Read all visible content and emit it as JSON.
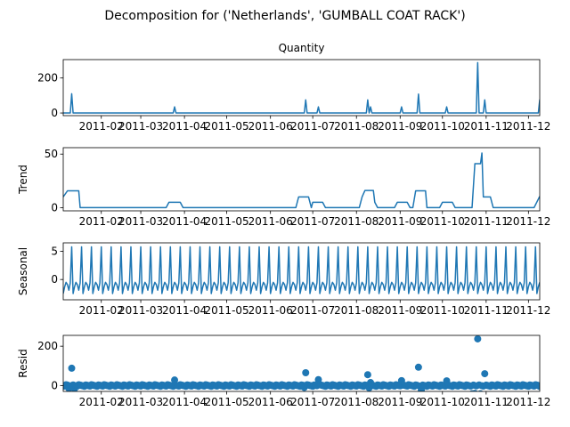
{
  "figure": {
    "suptitle": "Decomposition for ('Netherlands', 'GUMBALL COAT RACK')"
  },
  "line_color": "#1f77b4",
  "chart_data": [
    {
      "type": "line",
      "title": "Quantity",
      "ylabel": "",
      "x_range": [
        "2011-01-05",
        "2011-12-09"
      ],
      "ylim": [
        -15,
        305
      ],
      "yticks": [
        0,
        200
      ],
      "xticks": [
        "2011-02",
        "2011-03",
        "2011-04",
        "2011-05",
        "2011-06",
        "2011-07",
        "2011-08",
        "2011-09",
        "2011-10",
        "2011-11",
        "2011-12"
      ],
      "series": [
        {
          "baseline": 0,
          "spikes": [
            {
              "x": "2011-01-11",
              "y": 110
            },
            {
              "x": "2011-03-25",
              "y": 35
            },
            {
              "x": "2011-06-26",
              "y": 75
            },
            {
              "x": "2011-07-05",
              "y": 35
            },
            {
              "x": "2011-08-09",
              "y": 75
            },
            {
              "x": "2011-08-11",
              "y": 35
            },
            {
              "x": "2011-09-02",
              "y": 35
            },
            {
              "x": "2011-09-14",
              "y": 108
            },
            {
              "x": "2011-10-04",
              "y": 35
            },
            {
              "x": "2011-10-26",
              "y": 288
            },
            {
              "x": "2011-10-31",
              "y": 75
            },
            {
              "x": "2011-12-09",
              "y": 75
            }
          ]
        }
      ]
    },
    {
      "type": "line",
      "title": "",
      "ylabel": "Trend",
      "x_range": [
        "2011-01-05",
        "2011-12-09"
      ],
      "ylim": [
        -3,
        56
      ],
      "yticks": [
        0,
        50
      ],
      "xticks": [
        "2011-02",
        "2011-03",
        "2011-04",
        "2011-05",
        "2011-06",
        "2011-07",
        "2011-08",
        "2011-09",
        "2011-10",
        "2011-11",
        "2011-12"
      ],
      "series": [
        {
          "points": [
            [
              "2011-01-05",
              10
            ],
            [
              "2011-01-08",
              15.7
            ],
            [
              "2011-01-16",
              15.7
            ],
            [
              "2011-01-17",
              0
            ],
            [
              "2011-03-19",
              0
            ],
            [
              "2011-03-21",
              5
            ],
            [
              "2011-03-29",
              5
            ],
            [
              "2011-03-31",
              0
            ],
            [
              "2011-06-19",
              0
            ],
            [
              "2011-06-21",
              10
            ],
            [
              "2011-06-28",
              10
            ],
            [
              "2011-06-30",
              0
            ],
            [
              "2011-07-01",
              5
            ],
            [
              "2011-07-08",
              5
            ],
            [
              "2011-07-10",
              0
            ],
            [
              "2011-08-03",
              0
            ],
            [
              "2011-08-05",
              10
            ],
            [
              "2011-08-07",
              16
            ],
            [
              "2011-08-13",
              16
            ],
            [
              "2011-08-14",
              5
            ],
            [
              "2011-08-16",
              0
            ],
            [
              "2011-08-28",
              0
            ],
            [
              "2011-08-30",
              5
            ],
            [
              "2011-09-06",
              5
            ],
            [
              "2011-09-08",
              0
            ],
            [
              "2011-09-10",
              0
            ],
            [
              "2011-09-12",
              15.7
            ],
            [
              "2011-09-19",
              15.7
            ],
            [
              "2011-09-20",
              0
            ],
            [
              "2011-09-29",
              0
            ],
            [
              "2011-10-01",
              5
            ],
            [
              "2011-10-08",
              5
            ],
            [
              "2011-10-10",
              0
            ],
            [
              "2011-10-22",
              0
            ],
            [
              "2011-10-24",
              41
            ],
            [
              "2011-10-28",
              41
            ],
            [
              "2011-10-29",
              51
            ],
            [
              "2011-10-30",
              10
            ],
            [
              "2011-11-04",
              10
            ],
            [
              "2011-11-06",
              0
            ],
            [
              "2011-12-05",
              0
            ],
            [
              "2011-12-09",
              10.5
            ]
          ]
        }
      ]
    },
    {
      "type": "line",
      "title": "",
      "ylabel": "Seasonal",
      "x_range": [
        "2011-01-05",
        "2011-12-09"
      ],
      "ylim": [
        -3.6,
        6.5
      ],
      "yticks": [
        0,
        5
      ],
      "xticks": [
        "2011-02",
        "2011-03",
        "2011-04",
        "2011-05",
        "2011-06",
        "2011-07",
        "2011-08",
        "2011-09",
        "2011-10",
        "2011-11",
        "2011-12"
      ],
      "series": [
        {
          "period_days": 7,
          "first_peak": "2011-01-11",
          "weekly_pattern": [
            5.8,
            -2.5,
            -1.3,
            -0.5,
            -0.9,
            -1.9,
            -0.6
          ]
        }
      ]
    },
    {
      "type": "scatter",
      "title": "",
      "ylabel": "Resid",
      "x_range": [
        "2011-01-05",
        "2011-12-09"
      ],
      "ylim": [
        -30,
        255
      ],
      "yticks": [
        0,
        200
      ],
      "xticks": [
        "2011-02",
        "2011-03",
        "2011-04",
        "2011-05",
        "2011-06",
        "2011-07",
        "2011-08",
        "2011-09",
        "2011-10",
        "2011-11",
        "2011-12"
      ],
      "baseline": 0,
      "outliers": [
        {
          "x": "2011-01-11",
          "y": 88
        },
        {
          "x": "2011-01-09",
          "y": -15
        },
        {
          "x": "2011-01-13",
          "y": -17
        },
        {
          "x": "2011-03-25",
          "y": 28
        },
        {
          "x": "2011-06-25",
          "y": -10
        },
        {
          "x": "2011-06-26",
          "y": 65
        },
        {
          "x": "2011-07-05",
          "y": 30
        },
        {
          "x": "2011-08-09",
          "y": 55
        },
        {
          "x": "2011-08-10",
          "y": -12
        },
        {
          "x": "2011-08-11",
          "y": 15
        },
        {
          "x": "2011-09-02",
          "y": 25
        },
        {
          "x": "2011-09-14",
          "y": 93
        },
        {
          "x": "2011-09-16",
          "y": -22
        },
        {
          "x": "2011-10-04",
          "y": 24
        },
        {
          "x": "2011-10-22",
          "y": -42
        },
        {
          "x": "2011-10-24",
          "y": -40
        },
        {
          "x": "2011-10-26",
          "y": 237
        },
        {
          "x": "2011-10-28",
          "y": -42
        },
        {
          "x": "2011-10-31",
          "y": 60
        },
        {
          "x": "2011-12-09",
          "y": -5
        }
      ]
    }
  ]
}
